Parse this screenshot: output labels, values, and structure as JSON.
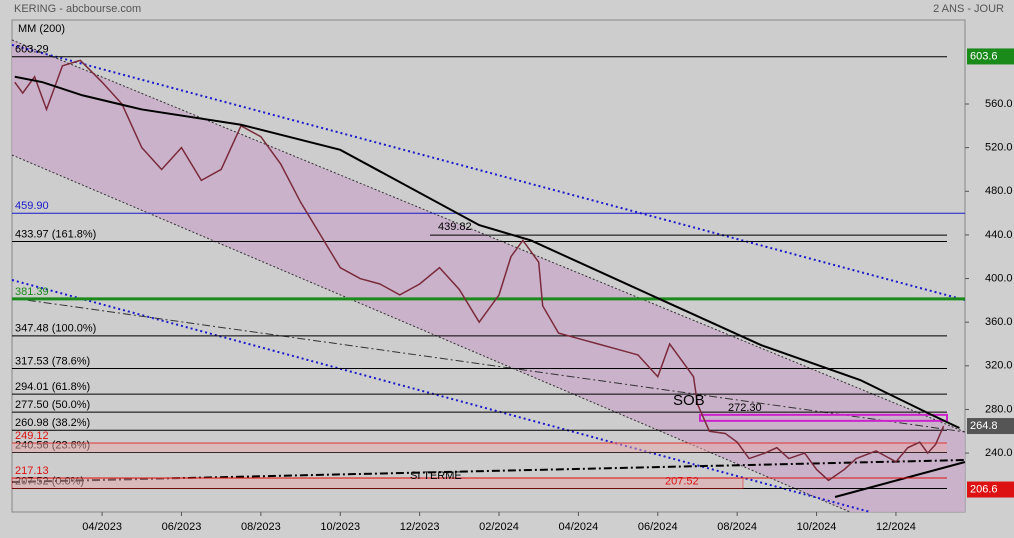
{
  "chart_data": {
    "type": "line",
    "title": "KERING - abcbourse.com",
    "subtitle": "2 ANS - JOUR",
    "annotations": [
      "SOB",
      "SI TERME"
    ],
    "xlim": [
      0.73,
      24.74
    ],
    "ylim": [
      186,
      637
    ],
    "xticks": [
      {
        "value": 3,
        "label": "04/2023"
      },
      {
        "value": 5,
        "label": "06/2023"
      },
      {
        "value": 7,
        "label": "08/2023"
      },
      {
        "value": 9,
        "label": "10/2023"
      },
      {
        "value": 11,
        "label": "12/2023"
      },
      {
        "value": 13,
        "label": "02/2024"
      },
      {
        "value": 15,
        "label": "04/2024"
      },
      {
        "value": 17,
        "label": "06/2024"
      },
      {
        "value": 19,
        "label": "08/2024"
      },
      {
        "value": 21,
        "label": "10/2024"
      },
      {
        "value": 23,
        "label": "12/2024"
      }
    ],
    "yticks": [
      {
        "value": 240,
        "label": "240.0"
      },
      {
        "value": 280,
        "label": "280.0"
      },
      {
        "value": 320,
        "label": "320.0"
      },
      {
        "value": 360,
        "label": "360.0"
      },
      {
        "value": 400,
        "label": "400.0"
      },
      {
        "value": 440,
        "label": "440.0"
      },
      {
        "value": 480,
        "label": "480.0"
      },
      {
        "value": 520,
        "label": "520.0"
      },
      {
        "value": 560,
        "label": "560.0"
      }
    ],
    "series": [
      {
        "color": "#7a2a3a",
        "x": [
          0.8,
          1.0,
          1.3,
          1.6,
          2.0,
          2.45,
          3.0,
          3.5,
          4.0,
          4.5,
          5.0,
          5.5,
          6.0,
          6.5,
          7.0,
          7.5,
          8.0,
          8.5,
          9.0,
          9.5,
          10.0,
          10.5,
          11.0,
          11.5,
          12.0,
          12.5,
          13.0,
          13.3,
          13.6,
          14.0,
          14.1,
          14.5,
          15.0,
          15.5,
          16.0,
          16.5,
          17.0,
          17.3,
          17.6,
          17.9,
          18.0,
          18.3,
          18.7,
          19.0,
          19.3,
          19.7,
          20.0,
          20.3,
          20.7,
          21.0,
          21.3,
          21.7,
          22.0,
          22.5,
          23.0,
          23.3,
          23.6,
          23.8,
          24.0,
          24.2
        ],
        "values": [
          580,
          570,
          585,
          555,
          595,
          600,
          580,
          560,
          520,
          500,
          520,
          490,
          500,
          540,
          530,
          505,
          470,
          440,
          410,
          400,
          395,
          385,
          395,
          410,
          390,
          360,
          385,
          420,
          435,
          415,
          375,
          350,
          345,
          340,
          335,
          330,
          310,
          340,
          325,
          310,
          285,
          260,
          258,
          250,
          235,
          240,
          245,
          235,
          240,
          225,
          215,
          225,
          235,
          242,
          232,
          245,
          250,
          240,
          248,
          264.8
        ]
      },
      {
        "name": "MM (200)",
        "color": "#000000",
        "x": [
          0.8,
          1.5,
          2.5,
          4.0,
          6.5,
          9.0,
          12.5,
          13.8,
          17.0,
          19.6,
          22.1,
          23.9,
          24.6
        ],
        "values": [
          585,
          580,
          568,
          555,
          541,
          518,
          449,
          435,
          382,
          339,
          307,
          275,
          263
        ]
      }
    ],
    "levels": [
      {
        "value": 603.29,
        "label": "603.29",
        "color": "#000000"
      },
      {
        "value": 459.9,
        "label": "459.90",
        "color": "#1a1acc"
      },
      {
        "value": 433.97,
        "label": "433.97  (161.8%)",
        "color": "#000000"
      },
      {
        "value": 381.39,
        "label": "381.39",
        "color": "#1a8a1a"
      },
      {
        "value": 347.48,
        "label": "347.48  (100.0%)",
        "color": "#000000"
      },
      {
        "value": 317.53,
        "label": "317.53  (78.6%)",
        "color": "#000000"
      },
      {
        "value": 294.01,
        "label": "294.01  (61.8%)",
        "color": "#000000"
      },
      {
        "value": 277.5,
        "label": "277.50  (50.0%)",
        "color": "#000000"
      },
      {
        "value": 260.98,
        "label": "260.98  (38.2%)",
        "color": "#000000"
      },
      {
        "value": 249.12,
        "label": "249.12",
        "color": "#dd1111"
      },
      {
        "value": 240.56,
        "label": "240.56  (23.6%)",
        "color": "#000000"
      },
      {
        "value": 217.13,
        "label": "217.13",
        "color": "#dd1111"
      },
      {
        "value": 207.52,
        "label": "207.52  (0.0%)",
        "color": "#000000"
      }
    ],
    "high_level": {
      "value": 439.82,
      "label": "439.82"
    },
    "magenta_level": {
      "value": 272.3,
      "label": "272.30"
    },
    "target_level": {
      "value": 207.52,
      "label": "207.52"
    },
    "last_labels": [
      {
        "value": 603.6,
        "label": "603.6",
        "color": "#1a8a1a"
      },
      {
        "value": 264.8,
        "label": "264.8",
        "color": "#555555"
      },
      {
        "value": 206.6,
        "label": "206.6",
        "color": "#dd1111"
      }
    ]
  }
}
